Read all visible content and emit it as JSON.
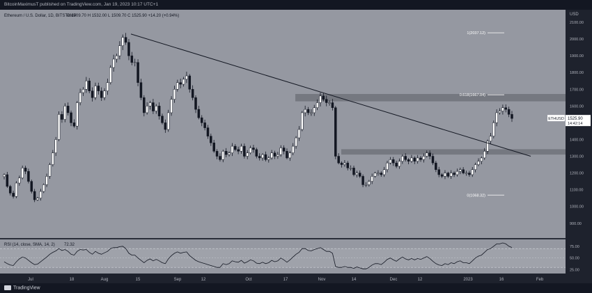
{
  "header": {
    "published_text": "BitcoinMaximusT published on TradingView.com, Jan 19, 2023 10:17 UTC+1"
  },
  "legend": {
    "symbol_line": "Ethereum / U.S. Dollar, 1D, BITSTAMP",
    "ohlc": "O 1509.70  H 1532.00  L 1509.70  C 1525.90  +14.20 (+0.94%)"
  },
  "footer": {
    "brand": "TradingView"
  },
  "chart_data": [
    {
      "type": "candlestick",
      "symbol": "ETHUSD",
      "currency": "USD",
      "timeframe": "1D",
      "x_ticks": [
        "Jul",
        "18",
        "Aug",
        "15",
        "Sep",
        "12",
        "Oct",
        "17",
        "Nov",
        "14",
        "Dec",
        "12",
        "2023",
        "16",
        "Feb"
      ],
      "y_ticks": [
        900,
        1000,
        1100,
        1200,
        1300,
        1400,
        1500,
        1600,
        1700,
        1800,
        1900,
        2000,
        2100
      ],
      "ylim": [
        820,
        2150
      ],
      "axis_unit_label": "USD",
      "last_price_label": "ETHUSD",
      "last_price": 1525.9,
      "countdown": "14:42:14",
      "fib_levels": [
        {
          "label": "1(2037.12)",
          "value": 2037.12
        },
        {
          "label": "0.618(1667.04)",
          "value": 1667.04
        },
        {
          "label": "0(1068.32)",
          "value": 1068.32
        }
      ],
      "zones": [
        {
          "low": 1628,
          "high": 1672
        },
        {
          "low": 1310,
          "high": 1342
        }
      ],
      "trendline": {
        "start_price": 2030,
        "end_price": 1300
      },
      "close_path": [
        1190,
        1120,
        1080,
        1060,
        1140,
        1170,
        1230,
        1210,
        1150,
        1090,
        1040,
        1050,
        1090,
        1130,
        1180,
        1250,
        1320,
        1400,
        1550,
        1520,
        1600,
        1560,
        1500,
        1480,
        1620,
        1680,
        1700,
        1750,
        1690,
        1650,
        1720,
        1690,
        1650,
        1690,
        1740,
        1830,
        1880,
        1900,
        1960,
        2010,
        1980,
        1900,
        1860,
        1860,
        1740,
        1650,
        1560,
        1600,
        1620,
        1570,
        1600,
        1540,
        1500,
        1460,
        1560,
        1640,
        1700,
        1740,
        1730,
        1760,
        1780,
        1700,
        1650,
        1580,
        1530,
        1500,
        1470,
        1420,
        1380,
        1330,
        1300,
        1280,
        1330,
        1310,
        1320,
        1360,
        1340,
        1330,
        1360,
        1300,
        1320,
        1350,
        1340,
        1300,
        1290,
        1310,
        1280,
        1290,
        1320,
        1300,
        1310,
        1350,
        1330,
        1290,
        1320,
        1360,
        1410,
        1460,
        1560,
        1580,
        1560,
        1560,
        1590,
        1620,
        1660,
        1640,
        1620,
        1620,
        1590,
        1300,
        1260,
        1250,
        1260,
        1230,
        1230,
        1190,
        1200,
        1180,
        1130,
        1130,
        1150,
        1180,
        1200,
        1200,
        1190,
        1220,
        1260,
        1280,
        1260,
        1240,
        1270,
        1300,
        1280,
        1270,
        1290,
        1270,
        1290,
        1280,
        1300,
        1320,
        1300,
        1260,
        1220,
        1190,
        1180,
        1200,
        1180,
        1200,
        1190,
        1210,
        1220,
        1200,
        1200,
        1190,
        1220,
        1250,
        1270,
        1290,
        1330,
        1390,
        1420,
        1500,
        1560,
        1570,
        1590,
        1580,
        1550,
        1525.9
      ],
      "volatility": 0.02
    },
    {
      "type": "line",
      "title": "RSI (14, close, SMA, 14, 2)",
      "current_value": "72.32",
      "y_ticks": [
        25,
        50,
        75
      ],
      "ylim": [
        20,
        85
      ],
      "bands": [
        30,
        70
      ],
      "midline": 50,
      "values": [
        42,
        38,
        35,
        34,
        42,
        48,
        52,
        50,
        45,
        40,
        36,
        37,
        42,
        47,
        52,
        58,
        62,
        65,
        70,
        66,
        68,
        64,
        58,
        56,
        64,
        68,
        67,
        68,
        62,
        58,
        64,
        60,
        58,
        61,
        64,
        70,
        72,
        72,
        74,
        75,
        70,
        60,
        56,
        56,
        50,
        45,
        40,
        45,
        48,
        44,
        47,
        44,
        40,
        38,
        48,
        55,
        60,
        63,
        60,
        62,
        63,
        55,
        50,
        45,
        42,
        40,
        38,
        36,
        34,
        32,
        30,
        30,
        38,
        36,
        38,
        44,
        42,
        41,
        45,
        39,
        42,
        46,
        44,
        39,
        38,
        41,
        38,
        40,
        45,
        42,
        44,
        50,
        46,
        41,
        46,
        52,
        58,
        62,
        70,
        70,
        66,
        65,
        68,
        70,
        72,
        68,
        64,
        64,
        60,
        32,
        30,
        30,
        32,
        30,
        30,
        28,
        31,
        29,
        27,
        27,
        30,
        35,
        38,
        38,
        36,
        41,
        47,
        50,
        46,
        43,
        48,
        52,
        48,
        46,
        49,
        46,
        49,
        47,
        50,
        53,
        49,
        43,
        38,
        35,
        34,
        38,
        36,
        40,
        38,
        42,
        44,
        40,
        40,
        38,
        44,
        50,
        54,
        56,
        62,
        68,
        70,
        75,
        80,
        80,
        82,
        80,
        75,
        72.32
      ]
    }
  ]
}
